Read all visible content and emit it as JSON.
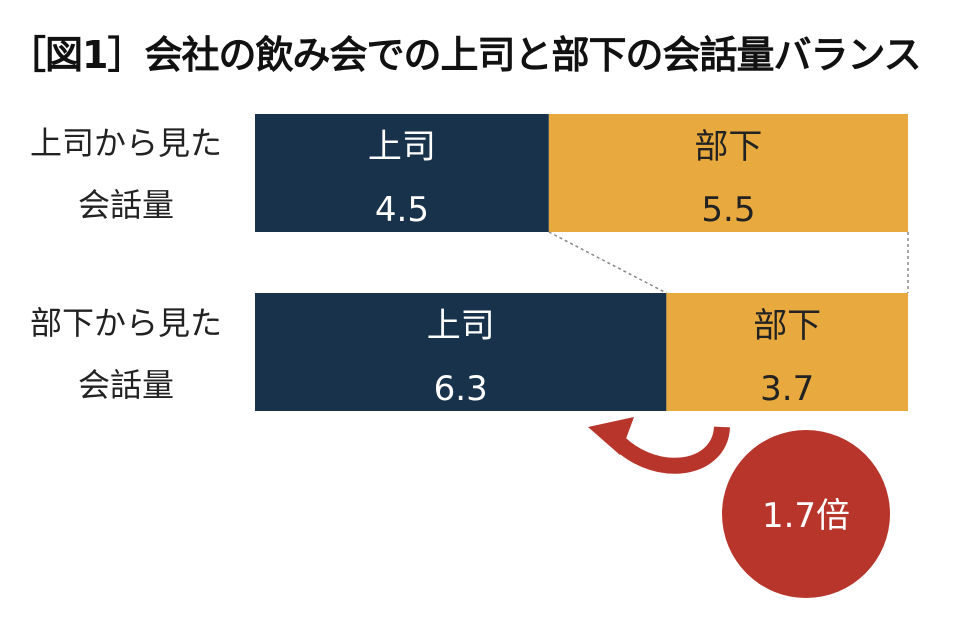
{
  "chart_data": {
    "type": "bar",
    "orientation": "horizontal",
    "stacked": "percent",
    "title": "［図1］会社の飲み会での上司と部下の会話量バランス",
    "categories": [
      [
        "上司から見た",
        "会話量"
      ],
      [
        "部下から見た",
        "会話量"
      ]
    ],
    "series": [
      {
        "name": "上司",
        "values": [
          4.5,
          6.3
        ],
        "color": "#17324a",
        "text_color": "#ffffff"
      },
      {
        "name": "部下",
        "values": [
          5.5,
          3.7
        ],
        "color": "#e8a93e",
        "text_color": "#222222"
      }
    ],
    "xlim": [
      0,
      10
    ],
    "grid": false,
    "legend": "none",
    "annotation": {
      "text": "1.7倍",
      "color": "#b8352b",
      "arrow": "curved, from 部下 segment toward 上司 segment of second bar"
    }
  }
}
